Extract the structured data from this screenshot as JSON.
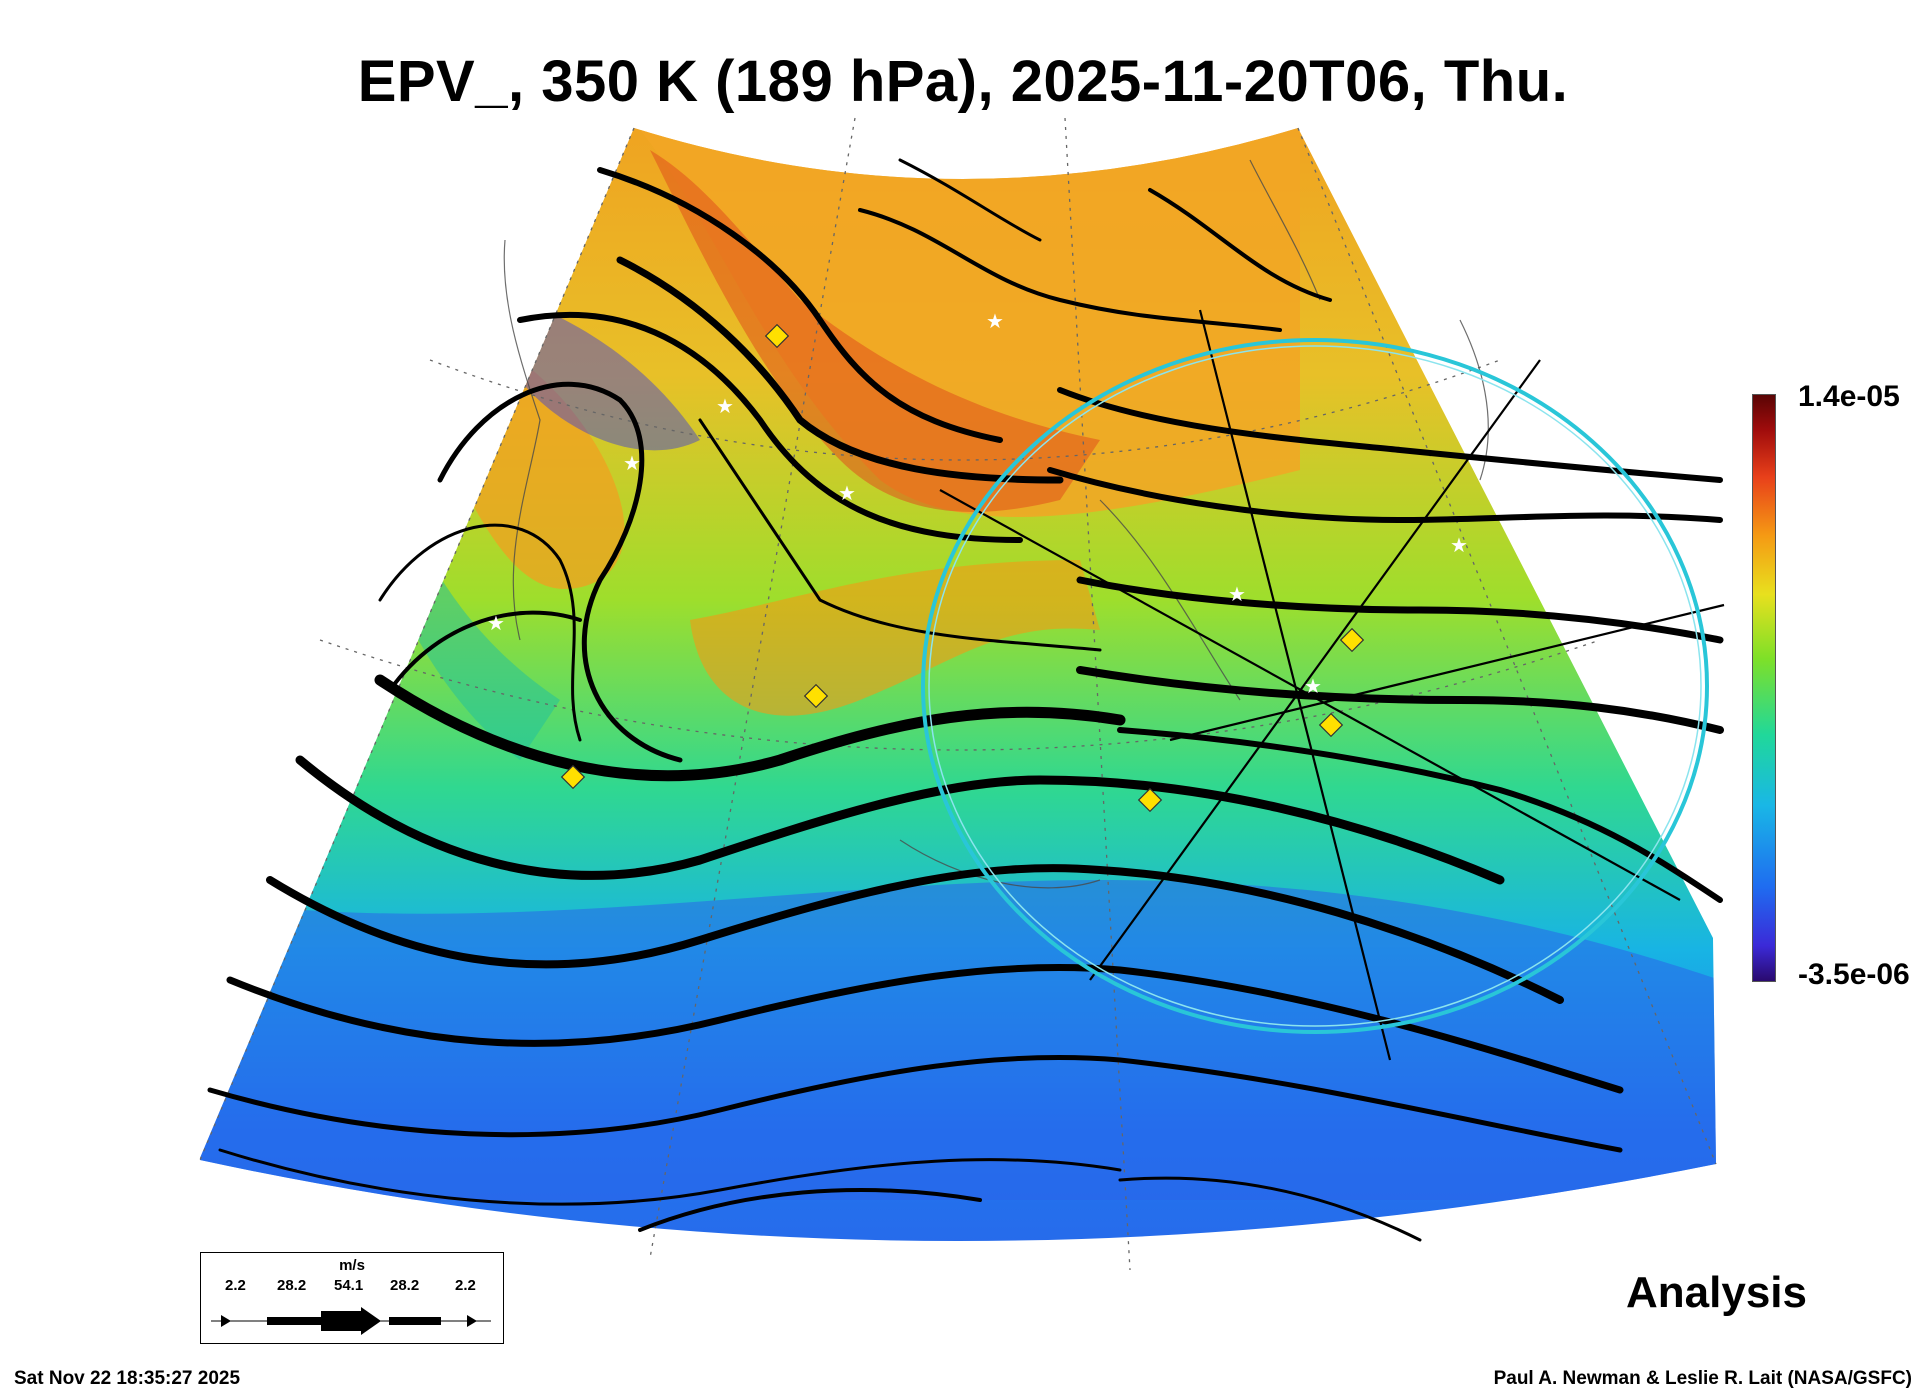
{
  "title": "EPV_, 350 K (189 hPa), 2025-11-20T06, Thu.",
  "colorbar": {
    "max_label": "1.4e-05",
    "min_label": "-3.5e-06",
    "colors": [
      "#2a0a6e",
      "#3b2ad8",
      "#1f6cf0",
      "#19b7e6",
      "#20d89a",
      "#7ee028",
      "#e8e01e",
      "#f59a14",
      "#e8401a",
      "#a00c0c",
      "#5a0505"
    ]
  },
  "wind_legend": {
    "unit": "m/s",
    "values": [
      "2.2",
      "28.2",
      "54.1",
      "28.2",
      "2.2"
    ]
  },
  "product_label": "Analysis",
  "timestamp": "Sat Nov 22 18:35:27 2025",
  "credit": "Paul A. Newman & Leslie R. Lait (NASA/GSFC)",
  "markers": {
    "star_color": "#ffffff",
    "diamond_color": "#ffe000",
    "ring_color": "#29c6d8"
  }
}
